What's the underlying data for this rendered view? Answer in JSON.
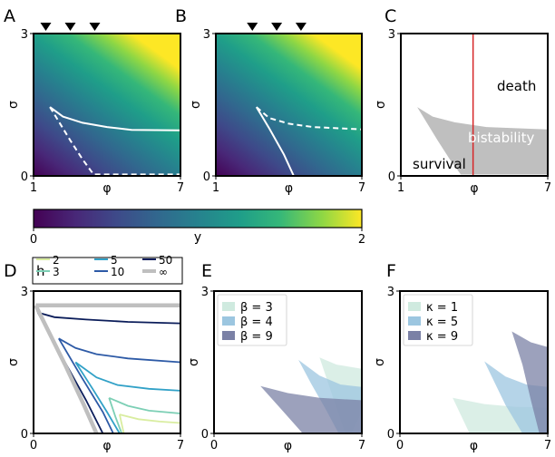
{
  "figure": {
    "colorbar": {
      "label": "y",
      "tick_min": "0",
      "tick_max": "2",
      "colormap": "viridis"
    }
  },
  "chart_data": [
    {
      "panel": "A",
      "type": "heatmap",
      "xlabel": "φ",
      "ylabel": "σ",
      "xlim": [
        1,
        7
      ],
      "ylim": [
        0,
        3
      ],
      "xticks": [
        "1",
        "7"
      ],
      "yticks": [
        "0",
        "3"
      ],
      "markers_x": [
        1.5,
        2.5,
        3.5
      ],
      "solid_curve": [
        [
          1.67,
          1.45
        ],
        [
          2.2,
          1.25
        ],
        [
          3.0,
          1.12
        ],
        [
          4.0,
          1.03
        ],
        [
          5.0,
          0.97
        ],
        [
          7.0,
          0.96
        ]
      ],
      "dashed_curve": [
        [
          1.67,
          1.45
        ],
        [
          2.5,
          0.75
        ],
        [
          3.0,
          0.35
        ],
        [
          3.45,
          0.03
        ],
        [
          7.0,
          0.03
        ]
      ]
    },
    {
      "panel": "B",
      "type": "heatmap",
      "xlabel": "φ",
      "ylabel": "σ",
      "xlim": [
        1,
        7
      ],
      "ylim": [
        0,
        3
      ],
      "xticks": [
        "1",
        "7"
      ],
      "yticks": [
        "0",
        "3"
      ],
      "markers_x": [
        2.5,
        3.5,
        4.5
      ],
      "solid_curve": [
        [
          2.67,
          1.45
        ],
        [
          3.2,
          1.0
        ],
        [
          3.8,
          0.45
        ],
        [
          4.2,
          0.0
        ]
      ],
      "dashed_curve": [
        [
          2.67,
          1.45
        ],
        [
          3.2,
          1.22
        ],
        [
          4.0,
          1.1
        ],
        [
          5.0,
          1.03
        ],
        [
          7.0,
          0.98
        ]
      ]
    },
    {
      "panel": "C",
      "type": "area",
      "xlabel": "φ",
      "ylabel": "σ",
      "xlim": [
        1,
        7
      ],
      "ylim": [
        0,
        3
      ],
      "xticks": [
        "1",
        "7"
      ],
      "yticks": [
        "0",
        "3"
      ],
      "region_labels": [
        "death",
        "bistability",
        "survival"
      ],
      "bistability_region": [
        [
          1.67,
          1.45
        ],
        [
          2.3,
          1.25
        ],
        [
          3.2,
          1.13
        ],
        [
          4.5,
          1.03
        ],
        [
          7.0,
          0.98
        ],
        [
          7.0,
          0.03
        ],
        [
          3.45,
          0.03
        ],
        [
          3.0,
          0.35
        ],
        [
          2.5,
          0.75
        ]
      ],
      "threshold_x": 3.95,
      "threshold_color": "#d62728",
      "region_color": "#bfbfbf"
    },
    {
      "panel": "D",
      "type": "line",
      "xlabel": "φ",
      "ylabel": "σ",
      "xlim": [
        0,
        7
      ],
      "ylim": [
        0,
        3
      ],
      "xticks": [
        "0",
        "7"
      ],
      "yticks": [
        "0",
        "3"
      ],
      "legend_title": "h",
      "series": [
        {
          "name": "2",
          "color": "#d9eda0",
          "upper": [
            [
              4.1,
              0.4
            ],
            [
              5.0,
              0.3
            ],
            [
              6.0,
              0.25
            ],
            [
              7.0,
              0.22
            ]
          ],
          "lower": [
            [
              4.1,
              0.4
            ],
            [
              4.2,
              0.2
            ],
            [
              4.3,
              0.0
            ]
          ]
        },
        {
          "name": "3",
          "color": "#7ccfb5",
          "upper": [
            [
              3.6,
              0.75
            ],
            [
              4.5,
              0.58
            ],
            [
              5.5,
              0.48
            ],
            [
              7.0,
              0.42
            ]
          ],
          "lower": [
            [
              3.6,
              0.75
            ],
            [
              3.9,
              0.35
            ],
            [
              4.2,
              0.0
            ]
          ]
        },
        {
          "name": "5",
          "color": "#31a1c7",
          "upper": [
            [
              2.0,
              1.5
            ],
            [
              3.0,
              1.18
            ],
            [
              4.0,
              1.02
            ],
            [
              5.5,
              0.94
            ],
            [
              7.0,
              0.9
            ]
          ],
          "lower": [
            [
              2.0,
              1.5
            ],
            [
              2.8,
              0.95
            ],
            [
              3.5,
              0.45
            ],
            [
              4.1,
              0.0
            ]
          ]
        },
        {
          "name": "10",
          "color": "#2d5aa6",
          "upper": [
            [
              1.2,
              2.0
            ],
            [
              2.0,
              1.8
            ],
            [
              3.0,
              1.67
            ],
            [
              4.5,
              1.58
            ],
            [
              7.0,
              1.5
            ]
          ],
          "lower": [
            [
              1.2,
              2.0
            ],
            [
              2.2,
              1.25
            ],
            [
              3.3,
              0.45
            ],
            [
              3.8,
              0.0
            ]
          ]
        },
        {
          "name": "50",
          "color": "#0b1d5a",
          "upper": [
            [
              0.2,
              2.55
            ],
            [
              1.0,
              2.45
            ],
            [
              2.5,
              2.4
            ],
            [
              4.5,
              2.35
            ],
            [
              7.0,
              2.32
            ]
          ],
          "lower": [
            [
              0.2,
              2.55
            ],
            [
              1.5,
              1.5
            ],
            [
              2.5,
              0.7
            ],
            [
              3.3,
              0.0
            ]
          ]
        },
        {
          "name": "∞",
          "color": "#bfbfbf",
          "upper": [
            [
              0.1,
              2.7
            ],
            [
              7.0,
              2.7
            ]
          ],
          "lower": [
            [
              0.1,
              2.7
            ],
            [
              1.5,
              1.45
            ],
            [
              2.4,
              0.6
            ],
            [
              3.0,
              0.0
            ]
          ]
        }
      ]
    },
    {
      "panel": "E",
      "type": "area",
      "xlabel": "φ",
      "ylabel": "σ",
      "xlim": [
        0,
        7
      ],
      "ylim": [
        0,
        3
      ],
      "xticks": [
        "0",
        "7"
      ],
      "yticks": [
        "0",
        "3"
      ],
      "series": [
        {
          "name": "β = 3",
          "color": "#cfeadf",
          "region": [
            [
              5.0,
              1.6
            ],
            [
              5.8,
              1.45
            ],
            [
              7.0,
              1.36
            ],
            [
              7.0,
              0.45
            ],
            [
              6.5,
              0.0
            ],
            [
              6.2,
              0.0
            ],
            [
              5.6,
              0.8
            ]
          ]
        },
        {
          "name": "β = 4",
          "color": "#9cc6e0",
          "region": [
            [
              4.0,
              1.55
            ],
            [
              5.0,
              1.22
            ],
            [
              6.0,
              1.03
            ],
            [
              7.0,
              0.98
            ],
            [
              7.0,
              0.0
            ],
            [
              5.9,
              0.0
            ],
            [
              5.3,
              0.5
            ],
            [
              4.6,
              1.05
            ]
          ]
        },
        {
          "name": "β = 9",
          "color": "#7b81a6",
          "region": [
            [
              2.2,
              1.0
            ],
            [
              3.5,
              0.85
            ],
            [
              5.0,
              0.75
            ],
            [
              7.0,
              0.7
            ],
            [
              7.0,
              0.0
            ],
            [
              4.2,
              0.0
            ],
            [
              3.2,
              0.5
            ]
          ]
        }
      ]
    },
    {
      "panel": "F",
      "type": "area",
      "xlabel": "φ",
      "ylabel": "σ",
      "xlim": [
        0,
        7
      ],
      "ylim": [
        0,
        3
      ],
      "xticks": [
        "0",
        "7"
      ],
      "yticks": [
        "0",
        "3"
      ],
      "series": [
        {
          "name": "κ = 1",
          "color": "#cfeadf",
          "region": [
            [
              2.5,
              0.75
            ],
            [
              4.0,
              0.62
            ],
            [
              5.5,
              0.56
            ],
            [
              7.0,
              0.55
            ],
            [
              7.0,
              0.0
            ],
            [
              3.3,
              0.0
            ]
          ]
        },
        {
          "name": "κ = 5",
          "color": "#9cc6e0",
          "region": [
            [
              4.0,
              1.52
            ],
            [
              5.0,
              1.2
            ],
            [
              6.0,
              1.03
            ],
            [
              7.0,
              0.98
            ],
            [
              7.0,
              0.0
            ],
            [
              5.8,
              0.0
            ],
            [
              5.0,
              0.6
            ]
          ]
        },
        {
          "name": "κ = 9",
          "color": "#7b81a6",
          "region": [
            [
              5.3,
              2.15
            ],
            [
              6.2,
              1.92
            ],
            [
              7.0,
              1.82
            ],
            [
              7.0,
              0.0
            ],
            [
              6.6,
              0.0
            ],
            [
              6.2,
              0.7
            ],
            [
              5.8,
              1.45
            ]
          ]
        }
      ]
    }
  ]
}
